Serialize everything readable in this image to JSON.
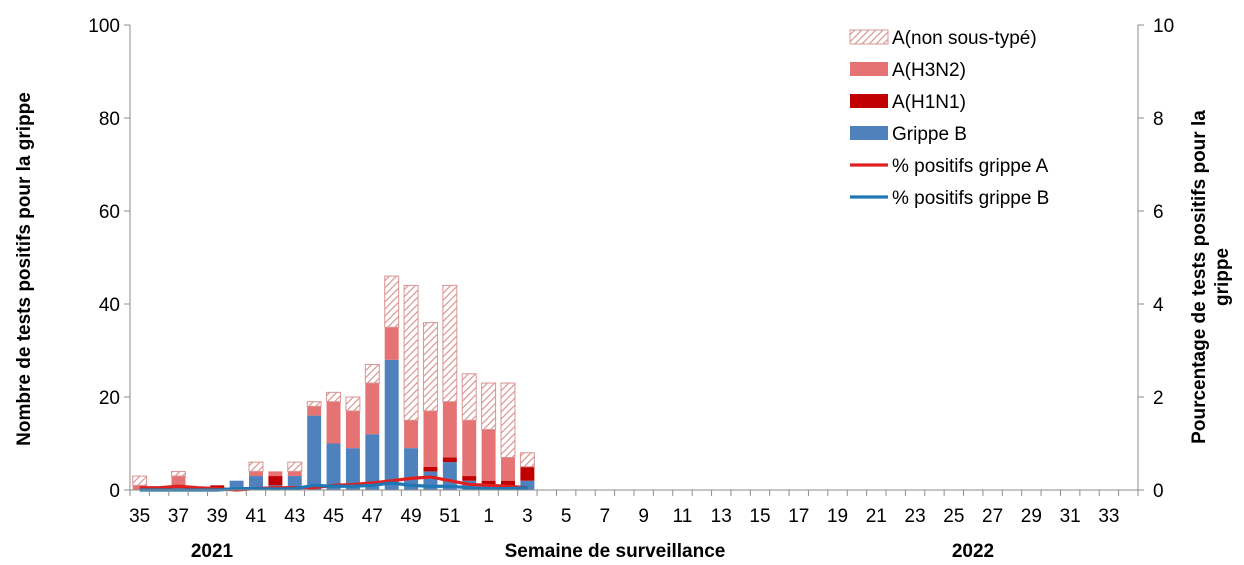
{
  "chart_data": {
    "type": "bar",
    "xlabel": "Semaine de surveillance",
    "ylabel_left": "Nombre de tests positifs pour la grippe",
    "ylabel_right": "Pourcentage de tests positifs pour la grippe",
    "ylim_left": [
      0,
      100
    ],
    "ylim_right": [
      0,
      10
    ],
    "yticks_left": [
      0,
      20,
      40,
      60,
      80,
      100
    ],
    "yticks_right": [
      0,
      2,
      4,
      6,
      8,
      10
    ],
    "year_labels": [
      "2021",
      "2022"
    ],
    "grid": false,
    "legend_position": "top-right",
    "weeks": [
      35,
      36,
      37,
      38,
      39,
      40,
      41,
      42,
      43,
      44,
      45,
      46,
      47,
      48,
      49,
      50,
      51,
      52,
      1,
      2,
      3,
      4,
      5,
      6,
      7,
      8,
      9,
      10,
      11,
      12,
      13,
      14,
      15,
      16,
      17,
      18,
      19,
      20,
      21,
      22,
      23,
      24,
      25,
      26,
      27,
      28,
      29,
      30,
      31,
      32,
      33,
      34
    ],
    "tick_labels": [
      "35",
      "37",
      "39",
      "41",
      "43",
      "45",
      "47",
      "49",
      "51",
      "1",
      "3",
      "5",
      "7",
      "9",
      "11",
      "13",
      "15",
      "17",
      "19",
      "21",
      "23",
      "25",
      "27",
      "29",
      "31",
      "33"
    ],
    "series": [
      {
        "name": "Grippe B",
        "kind": "bar",
        "color": "#4f81bd",
        "values": [
          0,
          0,
          0,
          0,
          0,
          2,
          3,
          1,
          3,
          16,
          10,
          9,
          12,
          28,
          9,
          4,
          6,
          2,
          1,
          1,
          2,
          0,
          0,
          0,
          0,
          0,
          0,
          0,
          0,
          0,
          0,
          0,
          0,
          0,
          0,
          0,
          0,
          0,
          0,
          0,
          0,
          0,
          0,
          0,
          0,
          0,
          0,
          0,
          0,
          0,
          0,
          0
        ]
      },
      {
        "name": "A(H1N1)",
        "kind": "bar",
        "color": "#c00000",
        "values": [
          0,
          0,
          0,
          0,
          1,
          0,
          0,
          2,
          0,
          0,
          0,
          0,
          0,
          0,
          0,
          1,
          1,
          1,
          1,
          1,
          3,
          0,
          0,
          0,
          0,
          0,
          0,
          0,
          0,
          0,
          0,
          0,
          0,
          0,
          0,
          0,
          0,
          0,
          0,
          0,
          0,
          0,
          0,
          0,
          0,
          0,
          0,
          0,
          0,
          0,
          0,
          0
        ]
      },
      {
        "name": "A(H3N2)",
        "kind": "bar",
        "color": "#e57373",
        "values": [
          1,
          0,
          3,
          0,
          0,
          0,
          1,
          1,
          1,
          2,
          9,
          8,
          11,
          7,
          6,
          12,
          12,
          12,
          11,
          5,
          0,
          0,
          0,
          0,
          0,
          0,
          0,
          0,
          0,
          0,
          0,
          0,
          0,
          0,
          0,
          0,
          0,
          0,
          0,
          0,
          0,
          0,
          0,
          0,
          0,
          0,
          0,
          0,
          0,
          0,
          0,
          0
        ]
      },
      {
        "name": "A(non sous-typé)",
        "kind": "bar",
        "color": "#d99594",
        "pattern": "hatch",
        "values": [
          2,
          0,
          1,
          0,
          0,
          0,
          2,
          0,
          2,
          1,
          2,
          3,
          4,
          11,
          29,
          19,
          25,
          10,
          10,
          16,
          3,
          0,
          0,
          0,
          0,
          0,
          0,
          0,
          0,
          0,
          0,
          0,
          0,
          0,
          0,
          0,
          0,
          0,
          0,
          0,
          0,
          0,
          0,
          0,
          0,
          0,
          0,
          0,
          0,
          0,
          0,
          0
        ]
      },
      {
        "name": "% positifs grippe A",
        "kind": "line",
        "axis": "right",
        "color": "#e02020",
        "values": [
          0.05,
          0.05,
          0.08,
          0.05,
          0.03,
          0,
          0.03,
          0.05,
          0.05,
          0.05,
          0.1,
          0.12,
          0.15,
          0.2,
          0.25,
          0.28,
          0.2,
          0.12,
          0.1,
          0.08,
          0.05
        ]
      },
      {
        "name": "% positifs grippe B",
        "kind": "line",
        "axis": "right",
        "color": "#1f77b4",
        "values": [
          0,
          0,
          0,
          0,
          0,
          0.03,
          0.03,
          0.02,
          0.03,
          0.1,
          0.08,
          0.08,
          0.1,
          0.15,
          0.1,
          0.08,
          0.08,
          0.05,
          0.03,
          0.03,
          0.05
        ]
      }
    ],
    "legend_order": [
      "A(non sous-typé)",
      "A(H3N2)",
      "A(H1N1)",
      "Grippe B",
      "% positifs grippe A",
      "% positifs grippe B"
    ]
  }
}
